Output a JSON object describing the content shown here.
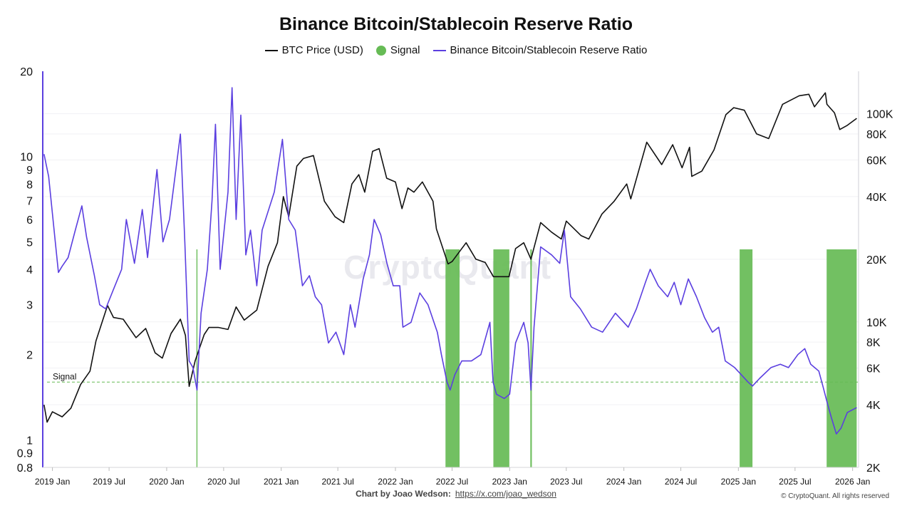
{
  "chart_data": {
    "type": "line",
    "title": "Binance Bitcoin/Stablecoin Reserve Ratio",
    "legend": [
      {
        "name": "BTC Price (USD)",
        "color": "#111111",
        "kind": "line"
      },
      {
        "name": "Signal",
        "color": "#66bb55",
        "kind": "dot"
      },
      {
        "name": "Binance Bitcoin/Stablecoin Reserve Ratio",
        "color": "#5b3fe0",
        "kind": "line"
      }
    ],
    "left_axis": {
      "scale": "log",
      "range": [
        0.8,
        20
      ],
      "ticks": [
        "20",
        "10",
        "9",
        "8",
        "7",
        "6",
        "5",
        "4",
        "3",
        "2",
        "1",
        "0.9",
        "0.8"
      ]
    },
    "right_axis": {
      "scale": "log",
      "range": [
        2000,
        160000
      ],
      "ticks": [
        "100K",
        "80K",
        "60K",
        "40K",
        "20K",
        "10K",
        "8K",
        "6K",
        "4K",
        "2K"
      ]
    },
    "x_axis": {
      "range": [
        "2018-12-01",
        "2026-01-20"
      ],
      "ticks": [
        "2019 Jan",
        "2019 Jul",
        "2020 Jan",
        "2020 Jul",
        "2021 Jan",
        "2021 Jul",
        "2022 Jan",
        "2022 Jul",
        "2023 Jan",
        "2023 Jul",
        "2024 Jan",
        "2024 Jul",
        "2025 Jan",
        "2025 Jul",
        "2026 Jan"
      ]
    },
    "signal_threshold": {
      "label": "Signal",
      "value": 1.6
    },
    "series": [
      {
        "name": "BTC Price (USD)",
        "axis": "right",
        "color": "#111111",
        "points": [
          [
            "2018-12-05",
            4000
          ],
          [
            "2018-12-15",
            3300
          ],
          [
            "2019-01-01",
            3700
          ],
          [
            "2019-02-01",
            3500
          ],
          [
            "2019-03-01",
            3850
          ],
          [
            "2019-04-01",
            5000
          ],
          [
            "2019-05-01",
            5800
          ],
          [
            "2019-05-20",
            8100
          ],
          [
            "2019-06-26",
            12000
          ],
          [
            "2019-07-15",
            10500
          ],
          [
            "2019-08-15",
            10300
          ],
          [
            "2019-09-25",
            8400
          ],
          [
            "2019-10-26",
            9300
          ],
          [
            "2019-11-25",
            7100
          ],
          [
            "2019-12-18",
            6700
          ],
          [
            "2020-01-15",
            8800
          ],
          [
            "2020-02-14",
            10300
          ],
          [
            "2020-03-01",
            8600
          ],
          [
            "2020-03-13",
            4900
          ],
          [
            "2020-04-01",
            6500
          ],
          [
            "2020-04-30",
            8700
          ],
          [
            "2020-05-15",
            9400
          ],
          [
            "2020-06-15",
            9400
          ],
          [
            "2020-07-15",
            9200
          ],
          [
            "2020-08-10",
            11800
          ],
          [
            "2020-09-05",
            10200
          ],
          [
            "2020-10-15",
            11400
          ],
          [
            "2020-11-20",
            18500
          ],
          [
            "2020-12-20",
            24000
          ],
          [
            "2021-01-08",
            40000
          ],
          [
            "2021-01-25",
            32000
          ],
          [
            "2021-02-20",
            56000
          ],
          [
            "2021-03-13",
            61000
          ],
          [
            "2021-04-14",
            63000
          ],
          [
            "2021-05-19",
            38000
          ],
          [
            "2021-06-22",
            32000
          ],
          [
            "2021-07-20",
            30000
          ],
          [
            "2021-08-15",
            46000
          ],
          [
            "2021-09-06",
            51000
          ],
          [
            "2021-09-25",
            42000
          ],
          [
            "2021-10-20",
            66000
          ],
          [
            "2021-11-10",
            68000
          ],
          [
            "2021-12-04",
            49000
          ],
          [
            "2022-01-01",
            47000
          ],
          [
            "2022-01-22",
            35000
          ],
          [
            "2022-02-10",
            44000
          ],
          [
            "2022-03-01",
            42000
          ],
          [
            "2022-03-28",
            47000
          ],
          [
            "2022-05-01",
            38000
          ],
          [
            "2022-05-12",
            28000
          ],
          [
            "2022-06-18",
            19000
          ],
          [
            "2022-07-01",
            19500
          ],
          [
            "2022-08-15",
            24000
          ],
          [
            "2022-09-15",
            20000
          ],
          [
            "2022-10-15",
            19300
          ],
          [
            "2022-11-10",
            16500
          ],
          [
            "2022-12-30",
            16500
          ],
          [
            "2023-01-20",
            22500
          ],
          [
            "2023-02-15",
            24000
          ],
          [
            "2023-03-10",
            20000
          ],
          [
            "2023-04-10",
            30000
          ],
          [
            "2023-05-15",
            27000
          ],
          [
            "2023-06-15",
            25000
          ],
          [
            "2023-07-01",
            30500
          ],
          [
            "2023-08-17",
            26000
          ],
          [
            "2023-09-11",
            25000
          ],
          [
            "2023-10-23",
            33000
          ],
          [
            "2023-12-01",
            38000
          ],
          [
            "2024-01-10",
            46000
          ],
          [
            "2024-01-23",
            39000
          ],
          [
            "2024-03-14",
            73000
          ],
          [
            "2024-05-01",
            57000
          ],
          [
            "2024-06-05",
            71000
          ],
          [
            "2024-07-05",
            55000
          ],
          [
            "2024-07-29",
            69000
          ],
          [
            "2024-08-05",
            50000
          ],
          [
            "2024-09-06",
            53000
          ],
          [
            "2024-10-15",
            67000
          ],
          [
            "2024-11-22",
            99000
          ],
          [
            "2024-12-17",
            107000
          ],
          [
            "2025-01-20",
            104000
          ],
          [
            "2025-02-28",
            80000
          ],
          [
            "2025-04-08",
            76000
          ],
          [
            "2025-05-22",
            111000
          ],
          [
            "2025-07-14",
            122000
          ],
          [
            "2025-08-14",
            124000
          ],
          [
            "2025-09-01",
            108000
          ],
          [
            "2025-10-06",
            126000
          ],
          [
            "2025-10-11",
            111000
          ],
          [
            "2025-11-04",
            101000
          ],
          [
            "2025-11-21",
            84000
          ],
          [
            "2025-12-15",
            88000
          ],
          [
            "2026-01-14",
            95000
          ]
        ]
      },
      {
        "name": "Binance Bitcoin/Stablecoin Reserve Ratio",
        "axis": "left",
        "color": "#5b3fe0",
        "points": [
          [
            "2018-12-05",
            10.2
          ],
          [
            "2018-12-20",
            8.5
          ],
          [
            "2019-01-10",
            5.0
          ],
          [
            "2019-01-20",
            3.9
          ],
          [
            "2019-02-01",
            4.1
          ],
          [
            "2019-02-20",
            4.4
          ],
          [
            "2019-03-15",
            5.5
          ],
          [
            "2019-04-05",
            6.7
          ],
          [
            "2019-04-20",
            5.2
          ],
          [
            "2019-05-15",
            3.8
          ],
          [
            "2019-06-01",
            3.0
          ],
          [
            "2019-06-20",
            2.9
          ],
          [
            "2019-07-15",
            3.4
          ],
          [
            "2019-08-10",
            4.0
          ],
          [
            "2019-08-25",
            6.0
          ],
          [
            "2019-09-20",
            4.2
          ],
          [
            "2019-10-15",
            6.5
          ],
          [
            "2019-11-01",
            4.4
          ],
          [
            "2019-12-01",
            9.0
          ],
          [
            "2019-12-20",
            5.0
          ],
          [
            "2020-01-10",
            6.0
          ],
          [
            "2020-02-14",
            12.0
          ],
          [
            "2020-02-28",
            5.0
          ],
          [
            "2020-03-13",
            1.9
          ],
          [
            "2020-03-25",
            1.8
          ],
          [
            "2020-04-07",
            1.5
          ],
          [
            "2020-04-20",
            2.8
          ],
          [
            "2020-05-10",
            4.0
          ],
          [
            "2020-05-25",
            7.0
          ],
          [
            "2020-06-05",
            13.0
          ],
          [
            "2020-06-20",
            4.0
          ],
          [
            "2020-07-15",
            7.5
          ],
          [
            "2020-07-28",
            17.5
          ],
          [
            "2020-08-10",
            6.0
          ],
          [
            "2020-08-25",
            14.0
          ],
          [
            "2020-09-10",
            4.5
          ],
          [
            "2020-09-25",
            5.5
          ],
          [
            "2020-10-15",
            3.5
          ],
          [
            "2020-11-01",
            5.5
          ],
          [
            "2020-12-10",
            7.5
          ],
          [
            "2021-01-05",
            11.5
          ],
          [
            "2021-01-25",
            6.0
          ],
          [
            "2021-02-15",
            5.5
          ],
          [
            "2021-03-10",
            3.5
          ],
          [
            "2021-04-01",
            3.8
          ],
          [
            "2021-04-20",
            3.2
          ],
          [
            "2021-05-10",
            3.0
          ],
          [
            "2021-06-01",
            2.2
          ],
          [
            "2021-06-25",
            2.4
          ],
          [
            "2021-07-20",
            2.0
          ],
          [
            "2021-08-10",
            3.0
          ],
          [
            "2021-08-25",
            2.5
          ],
          [
            "2021-09-20",
            3.7
          ],
          [
            "2021-10-10",
            4.5
          ],
          [
            "2021-10-25",
            6.0
          ],
          [
            "2021-11-15",
            5.3
          ],
          [
            "2021-12-05",
            4.2
          ],
          [
            "2021-12-25",
            3.5
          ],
          [
            "2022-01-15",
            3.5
          ],
          [
            "2022-01-25",
            2.5
          ],
          [
            "2022-02-20",
            2.6
          ],
          [
            "2022-03-20",
            3.3
          ],
          [
            "2022-04-15",
            3.0
          ],
          [
            "2022-05-15",
            2.4
          ],
          [
            "2022-05-28",
            2.0
          ],
          [
            "2022-06-15",
            1.6
          ],
          [
            "2022-06-25",
            1.5
          ],
          [
            "2022-07-10",
            1.7
          ],
          [
            "2022-08-01",
            1.9
          ],
          [
            "2022-09-01",
            1.9
          ],
          [
            "2022-10-01",
            2.0
          ],
          [
            "2022-10-30",
            2.6
          ],
          [
            "2022-11-09",
            1.6
          ],
          [
            "2022-11-20",
            1.45
          ],
          [
            "2022-12-15",
            1.4
          ],
          [
            "2023-01-01",
            1.45
          ],
          [
            "2023-01-20",
            2.2
          ],
          [
            "2023-02-15",
            2.6
          ],
          [
            "2023-03-01",
            2.2
          ],
          [
            "2023-03-10",
            1.5
          ],
          [
            "2023-03-20",
            2.5
          ],
          [
            "2023-04-10",
            4.8
          ],
          [
            "2023-05-15",
            4.5
          ],
          [
            "2023-06-10",
            4.2
          ],
          [
            "2023-06-25",
            5.5
          ],
          [
            "2023-07-15",
            3.2
          ],
          [
            "2023-08-15",
            2.9
          ],
          [
            "2023-09-20",
            2.5
          ],
          [
            "2023-10-25",
            2.4
          ],
          [
            "2023-12-05",
            2.8
          ],
          [
            "2024-01-15",
            2.5
          ],
          [
            "2024-02-10",
            2.9
          ],
          [
            "2024-03-10",
            3.6
          ],
          [
            "2024-03-25",
            4.0
          ],
          [
            "2024-04-20",
            3.5
          ],
          [
            "2024-05-20",
            3.2
          ],
          [
            "2024-06-10",
            3.6
          ],
          [
            "2024-07-01",
            3.0
          ],
          [
            "2024-07-25",
            3.7
          ],
          [
            "2024-08-20",
            3.2
          ],
          [
            "2024-09-15",
            2.7
          ],
          [
            "2024-10-10",
            2.4
          ],
          [
            "2024-10-30",
            2.5
          ],
          [
            "2024-11-20",
            1.9
          ],
          [
            "2024-12-20",
            1.8
          ],
          [
            "2025-01-10",
            1.7
          ],
          [
            "2025-02-01",
            1.6
          ],
          [
            "2025-02-15",
            1.55
          ],
          [
            "2025-03-10",
            1.65
          ],
          [
            "2025-04-15",
            1.8
          ],
          [
            "2025-05-15",
            1.85
          ],
          [
            "2025-06-10",
            1.8
          ],
          [
            "2025-07-10",
            2.0
          ],
          [
            "2025-08-01",
            2.1
          ],
          [
            "2025-08-20",
            1.85
          ],
          [
            "2025-09-15",
            1.75
          ],
          [
            "2025-09-28",
            1.55
          ],
          [
            "2025-10-12",
            1.35
          ],
          [
            "2025-10-25",
            1.2
          ],
          [
            "2025-11-10",
            1.05
          ],
          [
            "2025-11-25",
            1.1
          ],
          [
            "2025-12-15",
            1.25
          ],
          [
            "2026-01-14",
            1.3
          ]
        ]
      }
    ],
    "signal_bars": [
      {
        "start": "2020-04-05",
        "end": "2020-04-07"
      },
      {
        "start": "2022-06-10",
        "end": "2022-07-25"
      },
      {
        "start": "2022-11-10",
        "end": "2022-12-31"
      },
      {
        "start": "2023-03-08",
        "end": "2023-03-13"
      },
      {
        "start": "2025-01-05",
        "end": "2025-02-15"
      },
      {
        "start": "2025-10-10",
        "end": "2026-01-14"
      }
    ]
  },
  "footer": {
    "credit_label": "Chart by Joao Wedson:",
    "credit_link": "https://x.com/joao_wedson",
    "copyright": "© CryptoQuant. All rights reserved",
    "watermark": "CryptoQuant"
  }
}
